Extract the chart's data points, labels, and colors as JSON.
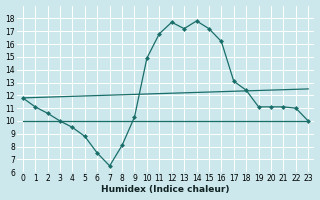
{
  "xlabel": "Humidex (Indice chaleur)",
  "bg_color": "#cce8ec",
  "grid_color": "#ffffff",
  "line_color": "#1a6e6a",
  "xlim": [
    -0.5,
    23.5
  ],
  "ylim": [
    6,
    19
  ],
  "yticks": [
    6,
    7,
    8,
    9,
    10,
    11,
    12,
    13,
    14,
    15,
    16,
    17,
    18
  ],
  "xticks": [
    0,
    1,
    2,
    3,
    4,
    5,
    6,
    7,
    8,
    9,
    10,
    11,
    12,
    13,
    14,
    15,
    16,
    17,
    18,
    19,
    20,
    21,
    22,
    23
  ],
  "line1_x": [
    0,
    1,
    2,
    3,
    4,
    5,
    6,
    7,
    8,
    9,
    10,
    11,
    12,
    13,
    14,
    15,
    16,
    17,
    18,
    19,
    20,
    21,
    22,
    23
  ],
  "line1_y": [
    11.8,
    11.1,
    10.6,
    10.0,
    9.5,
    8.8,
    7.5,
    6.5,
    8.1,
    10.3,
    14.9,
    16.8,
    17.7,
    17.2,
    17.8,
    17.2,
    16.2,
    13.1,
    12.4,
    11.1,
    11.1,
    11.1,
    11.0,
    10.0
  ],
  "line2_x": [
    0,
    23
  ],
  "line2_y": [
    11.8,
    12.5
  ],
  "line3_x": [
    0,
    23
  ],
  "line3_y": [
    10.0,
    10.0
  ],
  "markersize": 2.5
}
